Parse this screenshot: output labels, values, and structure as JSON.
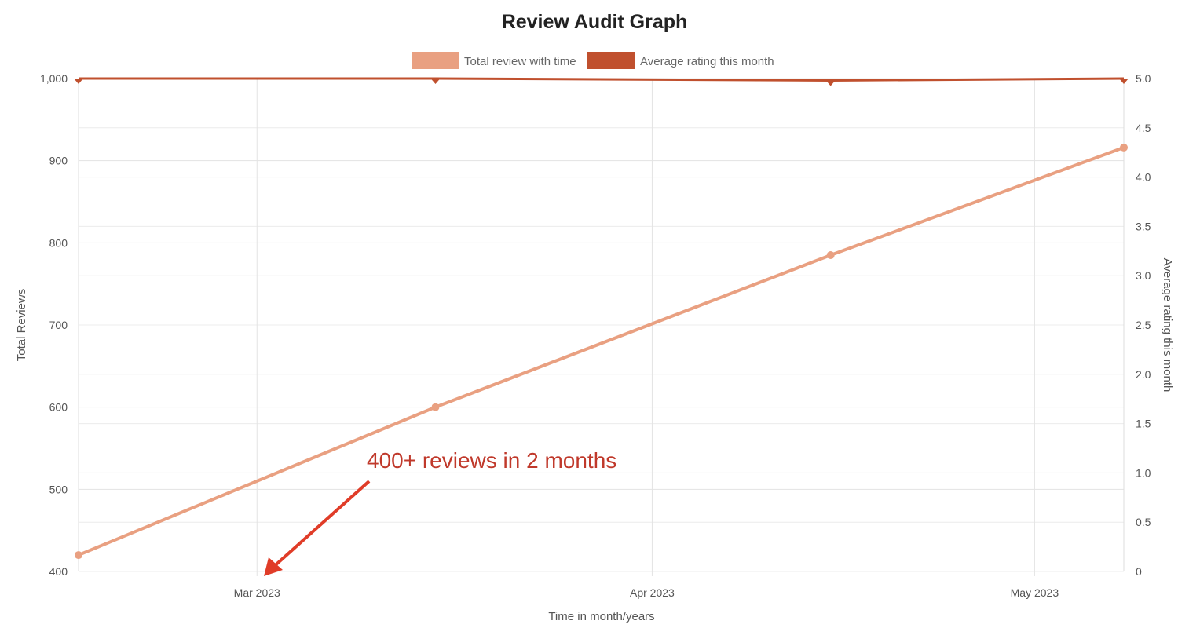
{
  "chart_data": {
    "type": "line",
    "title": "Review Audit Graph",
    "xlabel": "Time in month/years",
    "ylabel": "Total Reviews",
    "y2label": "Average rating this month",
    "x": [
      "2023-02-15",
      "2023-03-15",
      "2023-04-15",
      "2023-05-08"
    ],
    "x_ticks": [
      {
        "date": "2023-03-01",
        "label": "Mar 2023"
      },
      {
        "date": "2023-04-01",
        "label": "Apr 2023"
      },
      {
        "date": "2023-05-01",
        "label": "May 2023"
      }
    ],
    "xlim": [
      "2023-02-15",
      "2023-05-08"
    ],
    "ylim": [
      400,
      1000
    ],
    "y_ticks": [
      "400",
      "500",
      "600",
      "700",
      "800",
      "900",
      "1,000"
    ],
    "y2lim": [
      0,
      5
    ],
    "y2_ticks": [
      "0",
      "0.5",
      "1.0",
      "1.5",
      "2.0",
      "2.5",
      "3.0",
      "3.5",
      "4.0",
      "4.5",
      "5.0"
    ],
    "grid": true,
    "legend_position": "top",
    "series": [
      {
        "name": "Total review with time",
        "axis": "left",
        "color": "#E9A081",
        "values": [
          420,
          600,
          785,
          916
        ]
      },
      {
        "name": "Average rating this month",
        "axis": "right",
        "color": "#C0502E",
        "values": [
          5.0,
          5.0,
          4.98,
          5.0
        ]
      }
    ],
    "annotation": {
      "text": "400+ reviews in 2 months",
      "color": "#C0392B",
      "arrow_color": "#E03C28"
    }
  }
}
